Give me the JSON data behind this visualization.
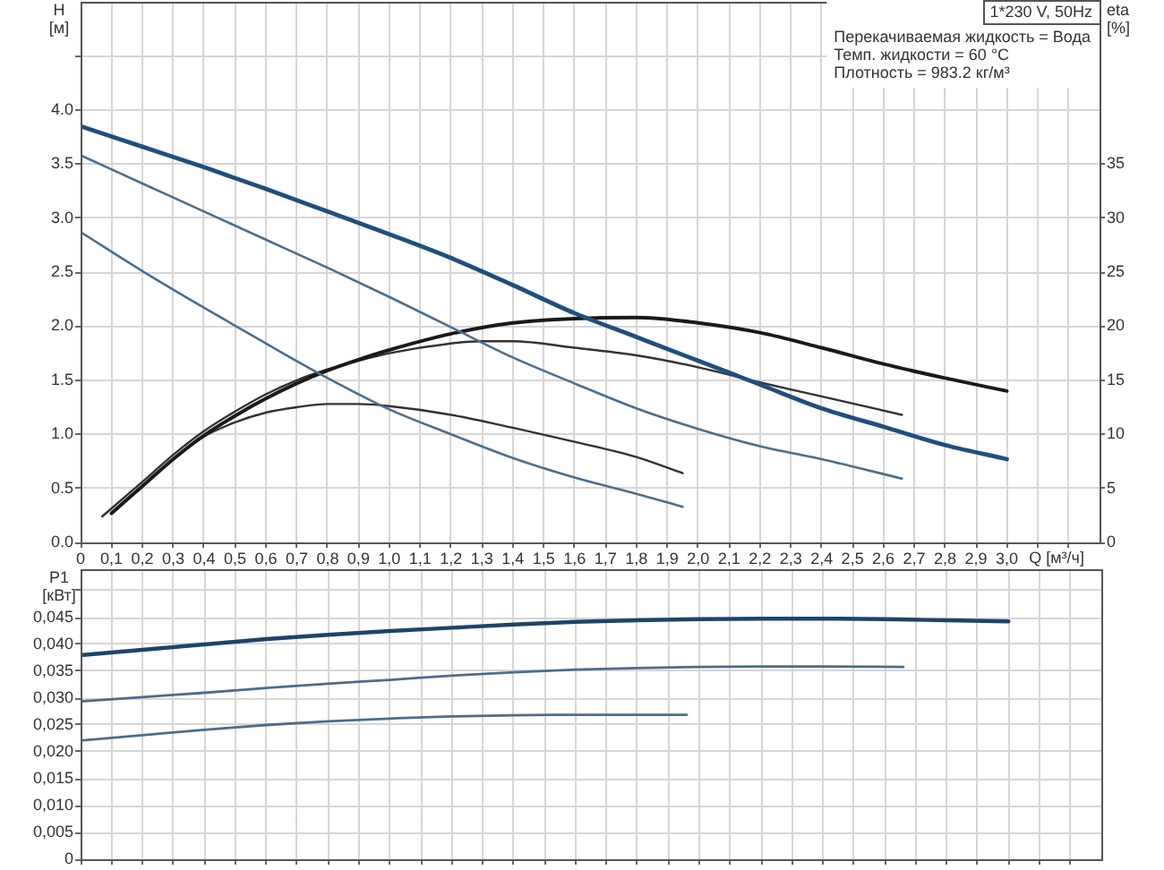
{
  "chart_data": [
    {
      "type": "line",
      "xlabel": "Q [м³/ч]",
      "ylabel": "H [м]",
      "y2label": "eta [%]",
      "annotations": [
        "1*230 V, 50Hz",
        "Перекачиваемая жидкость = Вода",
        "Темп. жидкости = 60 °C",
        "Плотность = 983.2 кг/м³"
      ],
      "series": [
        {
          "color": "#1f4f7f",
          "x": [
            0,
            0.2,
            0.4,
            0.6,
            0.8,
            1.0,
            1.2,
            1.4,
            1.6,
            1.8,
            2.0,
            2.2,
            2.4,
            2.6,
            2.8,
            3.0
          ],
          "values": [
            3.85,
            3.66,
            3.47,
            3.27,
            3.06,
            2.85,
            2.63,
            2.38,
            2.12,
            1.9,
            1.68,
            1.46,
            1.24,
            1.07,
            0.9,
            0.77
          ]
        },
        {
          "color": "#4a6f8f",
          "x": [
            0,
            0.2,
            0.4,
            0.6,
            0.8,
            1.0,
            1.2,
            1.4,
            1.6,
            1.8,
            2.0,
            2.2,
            2.4,
            2.66
          ],
          "values": [
            3.58,
            3.32,
            3.06,
            2.8,
            2.54,
            2.27,
            1.99,
            1.71,
            1.47,
            1.24,
            1.05,
            0.89,
            0.77,
            0.59
          ]
        },
        {
          "color": "#4a6f8f",
          "x": [
            0,
            0.2,
            0.4,
            0.6,
            0.8,
            1.0,
            1.2,
            1.4,
            1.6,
            1.8,
            1.95
          ],
          "values": [
            2.87,
            2.51,
            2.17,
            1.84,
            1.52,
            1.23,
            1.0,
            0.78,
            0.6,
            0.45,
            0.33
          ]
        },
        {
          "color": "#1a1a1a",
          "axis": "y2",
          "x": [
            0.1,
            0.2,
            0.3,
            0.4,
            0.5,
            0.6,
            0.7,
            0.8,
            0.9,
            1.0,
            1.2,
            1.4,
            1.6,
            1.8,
            2.0,
            2.2,
            2.4,
            2.6,
            2.8,
            3.0
          ],
          "values": [
            2.7,
            5.2,
            7.7,
            9.9,
            11.7,
            13.3,
            14.7,
            15.9,
            16.9,
            17.8,
            19.3,
            20.3,
            20.7,
            20.8,
            20.3,
            19.4,
            18.0,
            16.5,
            15.2,
            14.0
          ]
        },
        {
          "color": "#333333",
          "axis": "y2",
          "x": [
            0.07,
            0.2,
            0.3,
            0.4,
            0.5,
            0.6,
            0.7,
            0.8,
            0.9,
            1.0,
            1.2,
            1.3,
            1.4,
            1.6,
            1.8,
            2.0,
            2.2,
            2.4,
            2.66
          ],
          "values": [
            2.4,
            5.6,
            8.1,
            10.3,
            12.1,
            13.7,
            15.0,
            16.0,
            16.8,
            17.5,
            18.4,
            18.6,
            18.6,
            18.0,
            17.3,
            16.2,
            14.8,
            13.5,
            11.8
          ]
        },
        {
          "color": "#333333",
          "axis": "y2",
          "x": [
            0.1,
            0.2,
            0.3,
            0.4,
            0.5,
            0.6,
            0.7,
            0.8,
            0.9,
            1.0,
            1.2,
            1.4,
            1.6,
            1.8,
            1.95
          ],
          "values": [
            2.7,
            5.2,
            7.7,
            9.8,
            11.1,
            12.0,
            12.5,
            12.8,
            12.8,
            12.6,
            11.8,
            10.6,
            9.3,
            7.9,
            6.4
          ]
        }
      ],
      "xlim": [
        0,
        3.3
      ],
      "xticks": [
        0,
        {
          "value": 0.1,
          "label": "0,1"
        },
        {
          "value": 0.2,
          "label": "0,2"
        },
        {
          "value": 0.3,
          "label": "0,3"
        },
        {
          "value": 0.4,
          "label": "0,4"
        },
        {
          "value": 0.5,
          "label": "0,5"
        },
        {
          "value": 0.6,
          "label": "0,6"
        },
        {
          "value": 0.7,
          "label": "0,7"
        },
        {
          "value": 0.8,
          "label": "0,8"
        },
        {
          "value": 0.9,
          "label": "0,9"
        },
        {
          "value": 1.0,
          "label": "1,0"
        },
        {
          "value": 1.1,
          "label": "1,1"
        },
        {
          "value": 1.2,
          "label": "1,2"
        },
        {
          "value": 1.3,
          "label": "1,3"
        },
        {
          "value": 1.4,
          "label": "1,4"
        },
        {
          "value": 1.5,
          "label": "1,5"
        },
        {
          "value": 1.6,
          "label": "1,6"
        },
        {
          "value": 1.7,
          "label": "1,7"
        },
        {
          "value": 1.8,
          "label": "1,8"
        },
        {
          "value": 1.9,
          "label": "1,9"
        },
        {
          "value": 2.0,
          "label": "2,0"
        },
        {
          "value": 2.1,
          "label": "2,1"
        },
        {
          "value": 2.2,
          "label": "2,2"
        },
        {
          "value": 2.3,
          "label": "2,3"
        },
        {
          "value": 2.4,
          "label": "2,4"
        },
        {
          "value": 2.5,
          "label": "2,5"
        },
        {
          "value": 2.6,
          "label": "2,6"
        },
        {
          "value": 2.7,
          "label": "2,7"
        },
        {
          "value": 2.8,
          "label": "2,8"
        },
        {
          "value": 2.9,
          "label": "2,9"
        },
        {
          "value": 3.0,
          "label": "3,0"
        },
        {
          "value": 3.1,
          "label": null
        },
        {
          "value": 3.2,
          "label": null
        }
      ],
      "ylim": [
        0,
        5
      ],
      "yticks": [
        {
          "value": 0,
          "label": "0.0"
        },
        0.5,
        {
          "value": 1,
          "label": "1.0"
        },
        1.5,
        {
          "value": 2,
          "label": "2.0"
        },
        2.5,
        {
          "value": 3,
          "label": "3.0"
        },
        3.5,
        {
          "value": 4,
          "label": "4.0"
        },
        {
          "value": 4.5,
          "label": null
        }
      ],
      "y2lim": [
        0,
        50
      ],
      "y2ticks": [
        0,
        5,
        10,
        15,
        20,
        25,
        30,
        35
      ],
      "grid": true
    },
    {
      "type": "line",
      "ylabel": "P1 [кВт]",
      "series": [
        {
          "color": "#1d4468",
          "x": [
            0,
            0.2,
            0.4,
            0.6,
            0.8,
            1.0,
            1.2,
            1.4,
            1.6,
            1.8,
            2.0,
            2.2,
            2.4,
            2.6,
            2.8,
            3.0
          ],
          "values": [
            0.038,
            0.039,
            0.04,
            0.041,
            0.0418,
            0.0425,
            0.0431,
            0.0437,
            0.0442,
            0.0445,
            0.0447,
            0.0448,
            0.0448,
            0.0447,
            0.0445,
            0.0443
          ]
        },
        {
          "color": "#4b6d8c",
          "x": [
            0,
            0.2,
            0.4,
            0.6,
            0.8,
            1.0,
            1.2,
            1.4,
            1.6,
            1.8,
            2.0,
            2.2,
            2.4,
            2.66
          ],
          "values": [
            0.0294,
            0.0302,
            0.031,
            0.0319,
            0.0327,
            0.0334,
            0.0342,
            0.0348,
            0.0353,
            0.0356,
            0.0358,
            0.0359,
            0.0359,
            0.0358
          ]
        },
        {
          "color": "#4b6d8c",
          "x": [
            0,
            0.2,
            0.4,
            0.6,
            0.8,
            1.0,
            1.2,
            1.4,
            1.6,
            1.8,
            1.96
          ],
          "values": [
            0.0221,
            0.0231,
            0.0241,
            0.025,
            0.0257,
            0.0262,
            0.0266,
            0.0268,
            0.0269,
            0.0269,
            0.0269
          ]
        }
      ],
      "xlim": [
        0,
        3.3
      ],
      "xticks": [
        0,
        0.1,
        0.2,
        0.3,
        0.4,
        0.5,
        0.6,
        0.7,
        0.8,
        0.9,
        1.0,
        1.1,
        1.2,
        1.3,
        1.4,
        1.5,
        1.6,
        1.7,
        1.8,
        1.9,
        2.0,
        2.1,
        2.2,
        2.3,
        2.4,
        2.5,
        2.6,
        2.7,
        2.8,
        2.9,
        3.0,
        3.1,
        3.2
      ],
      "ylim": [
        0,
        0.054
      ],
      "yticks": [
        0,
        {
          "value": 0.005,
          "label": "0,005"
        },
        {
          "value": 0.01,
          "label": "0,010"
        },
        {
          "value": 0.015,
          "label": "0,015"
        },
        {
          "value": 0.02,
          "label": "0,020"
        },
        {
          "value": 0.025,
          "label": "0,025"
        },
        {
          "value": 0.03,
          "label": "0,030"
        },
        {
          "value": 0.035,
          "label": "0,035"
        },
        {
          "value": 0.04,
          "label": "0,040"
        },
        {
          "value": 0.045,
          "label": "0,045"
        },
        {
          "value": 0.05,
          "label": null
        }
      ],
      "grid": true,
      "tick_labels": "y"
    }
  ]
}
